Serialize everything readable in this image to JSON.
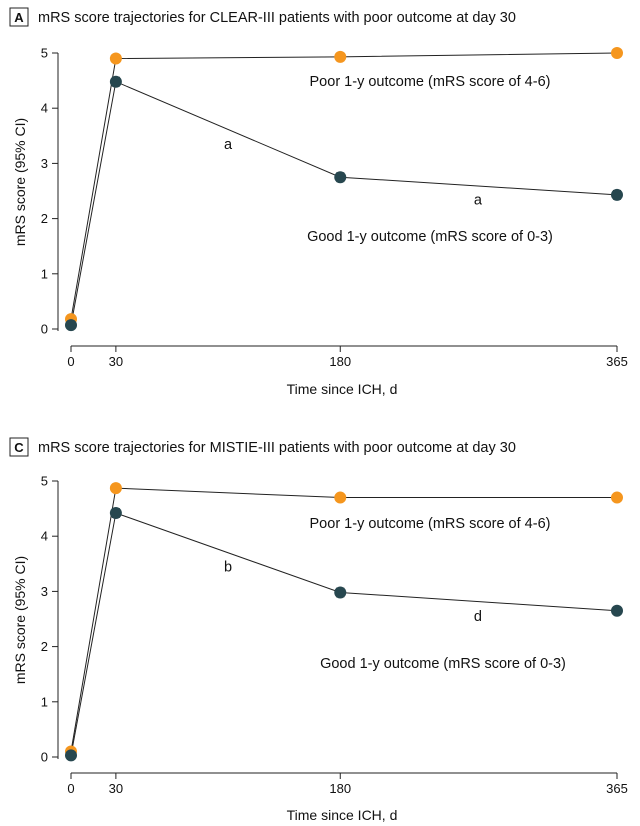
{
  "chart_data": [
    {
      "type": "line",
      "panel_letter": "A",
      "title": "mRS score trajectories for CLEAR-III patients with poor outcome at day 30",
      "xlabel": "Time since ICH, d",
      "ylabel": "mRS score (95% CI)",
      "x": [
        0,
        30,
        180,
        365
      ],
      "x_tick_labels": [
        "0",
        "30",
        "180",
        "365"
      ],
      "xlim": [
        0,
        365
      ],
      "ylim": [
        0,
        5
      ],
      "y_ticks": [
        0,
        1,
        2,
        3,
        4,
        5
      ],
      "y_tick_labels": [
        "0",
        "1",
        "2",
        "3",
        "4",
        "5"
      ],
      "series": [
        {
          "name": "Poor 1-y outcome (mRS score of 4-6)",
          "color": "#f5961e",
          "values": [
            0.18,
            4.9,
            4.93,
            5.0
          ],
          "ci": [
            0.06,
            0.07,
            0.07,
            0.06
          ]
        },
        {
          "name": "Good 1-y outcome (mRS score of 0-3)",
          "color": "#27474f",
          "values": [
            0.07,
            4.48,
            2.75,
            2.43
          ],
          "ci": [
            0.04,
            0.08,
            0.08,
            0.08
          ]
        }
      ],
      "annotations": [
        {
          "text": "a",
          "x": 105,
          "y": 3.35
        },
        {
          "text": "a",
          "x": 272,
          "y": 2.35
        }
      ]
    },
    {
      "type": "line",
      "panel_letter": "C",
      "title": "mRS score trajectories for MISTIE-III patients with poor outcome at day 30",
      "xlabel": "Time since ICH, d",
      "ylabel": "mRS score (95% CI)",
      "x": [
        0,
        30,
        180,
        365
      ],
      "x_tick_labels": [
        "0",
        "30",
        "180",
        "365"
      ],
      "xlim": [
        0,
        365
      ],
      "ylim": [
        0,
        5
      ],
      "y_ticks": [
        0,
        1,
        2,
        3,
        4,
        5
      ],
      "y_tick_labels": [
        "0",
        "1",
        "2",
        "3",
        "4",
        "5"
      ],
      "series": [
        {
          "name": "Poor 1-y outcome (mRS score of 4-6)",
          "color": "#f5961e",
          "values": [
            0.1,
            4.87,
            4.7,
            4.7
          ],
          "ci": [
            0.05,
            0.06,
            0.06,
            0.06
          ]
        },
        {
          "name": "Good 1-y outcome (mRS score of 0-3)",
          "color": "#27474f",
          "values": [
            0.03,
            4.42,
            2.98,
            2.65
          ],
          "ci": [
            0.03,
            0.08,
            0.08,
            0.07
          ]
        }
      ],
      "annotations": [
        {
          "text": "b",
          "x": 105,
          "y": 3.45
        },
        {
          "text": "d",
          "x": 272,
          "y": 2.55
        }
      ]
    }
  ]
}
